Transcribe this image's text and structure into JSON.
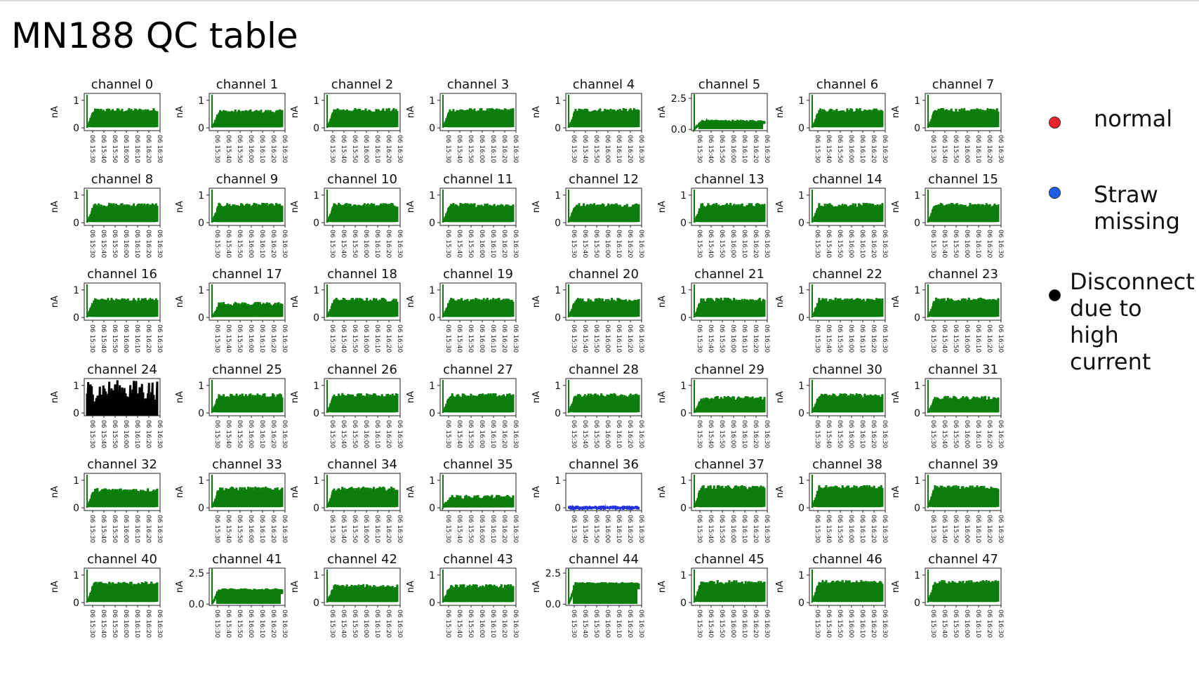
{
  "title": "MN188 QC table",
  "legend": [
    {
      "label": "normal",
      "color": "#e8232a"
    },
    {
      "label": "Straw\nmissing",
      "color": "#1f5fe8"
    },
    {
      "label": "Disconnect\ndue to high\ncurrent",
      "color": "#000000"
    }
  ],
  "chart_data": {
    "type": "line",
    "ylabel": "nA",
    "x_ticks": [
      "06 15:30",
      "06 15:40",
      "06 15:50",
      "06 16:00",
      "06 16:10",
      "06 16:20",
      "06 16:30"
    ],
    "status_colors": {
      "normal": "#0a7d0a",
      "straw_missing": "#2233dd",
      "disconnect": "#000000"
    },
    "panels": [
      {
        "title": "channel 0",
        "yticks": [
          "1",
          "0"
        ],
        "status": "normal",
        "level": 0.55
      },
      {
        "title": "channel 1",
        "yticks": [
          "1",
          "0"
        ],
        "status": "normal",
        "level": 0.5
      },
      {
        "title": "channel 2",
        "yticks": [
          "1",
          "0"
        ],
        "status": "normal",
        "level": 0.55
      },
      {
        "title": "channel 3",
        "yticks": [
          "1",
          "0"
        ],
        "status": "normal",
        "level": 0.55
      },
      {
        "title": "channel 4",
        "yticks": [
          "1",
          "0"
        ],
        "status": "normal",
        "level": 0.55
      },
      {
        "title": "channel 5",
        "yticks": [
          "2.5",
          "0.0"
        ],
        "status": "normal",
        "level": 0.6
      },
      {
        "title": "channel 6",
        "yticks": [
          "1",
          "0"
        ],
        "status": "normal",
        "level": 0.55
      },
      {
        "title": "channel 7",
        "yticks": [
          "1",
          "0"
        ],
        "status": "normal",
        "level": 0.55
      },
      {
        "title": "channel 8",
        "yticks": [
          "1",
          "0"
        ],
        "status": "normal",
        "level": 0.55
      },
      {
        "title": "channel 9",
        "yticks": [
          "1",
          "0"
        ],
        "status": "normal",
        "level": 0.55
      },
      {
        "title": "channel 10",
        "yticks": [
          "1",
          "0"
        ],
        "status": "normal",
        "level": 0.55
      },
      {
        "title": "channel 11",
        "yticks": [
          "1",
          "0"
        ],
        "status": "normal",
        "level": 0.55
      },
      {
        "title": "channel 12",
        "yticks": [
          "1",
          "0"
        ],
        "status": "normal",
        "level": 0.55
      },
      {
        "title": "channel 13",
        "yticks": [
          "1",
          "0"
        ],
        "status": "normal",
        "level": 0.55
      },
      {
        "title": "channel 14",
        "yticks": [
          "1",
          "0"
        ],
        "status": "normal",
        "level": 0.55
      },
      {
        "title": "channel 15",
        "yticks": [
          "1",
          "0"
        ],
        "status": "normal",
        "level": 0.55
      },
      {
        "title": "channel 16",
        "yticks": [
          "1",
          "0"
        ],
        "status": "normal",
        "level": 0.55
      },
      {
        "title": "channel 17",
        "yticks": [
          "1",
          "0"
        ],
        "status": "normal",
        "level": 0.4
      },
      {
        "title": "channel 18",
        "yticks": [
          "1",
          "0"
        ],
        "status": "normal",
        "level": 0.55
      },
      {
        "title": "channel 19",
        "yticks": [
          "1",
          "0"
        ],
        "status": "normal",
        "level": 0.55
      },
      {
        "title": "channel 20",
        "yticks": [
          "1",
          "0"
        ],
        "status": "normal",
        "level": 0.55
      },
      {
        "title": "channel 21",
        "yticks": [
          "1",
          "0"
        ],
        "status": "normal",
        "level": 0.55
      },
      {
        "title": "channel 22",
        "yticks": [
          "1",
          "0"
        ],
        "status": "normal",
        "level": 0.55
      },
      {
        "title": "channel 23",
        "yticks": [
          "1",
          "0"
        ],
        "status": "normal",
        "level": 0.55
      },
      {
        "title": "channel 24",
        "yticks": [
          "1",
          "0"
        ],
        "status": "disconnect",
        "level": 0.5
      },
      {
        "title": "channel 25",
        "yticks": [
          "1",
          "0"
        ],
        "status": "normal",
        "level": 0.55
      },
      {
        "title": "channel 26",
        "yticks": [
          "1",
          "0"
        ],
        "status": "normal",
        "level": 0.55
      },
      {
        "title": "channel 27",
        "yticks": [
          "1",
          "0"
        ],
        "status": "normal",
        "level": 0.55
      },
      {
        "title": "channel 28",
        "yticks": [
          "1",
          "0"
        ],
        "status": "normal",
        "level": 0.55
      },
      {
        "title": "channel 29",
        "yticks": [
          "1",
          "0"
        ],
        "status": "normal",
        "level": 0.45
      },
      {
        "title": "channel 30",
        "yticks": [
          "1",
          "0"
        ],
        "status": "normal",
        "level": 0.55
      },
      {
        "title": "channel 31",
        "yticks": [
          "1",
          "0"
        ],
        "status": "normal",
        "level": 0.45
      },
      {
        "title": "channel 32",
        "yticks": [
          "1",
          "0"
        ],
        "status": "normal",
        "level": 0.55
      },
      {
        "title": "channel 33",
        "yticks": [
          "1",
          "0"
        ],
        "status": "normal",
        "level": 0.6
      },
      {
        "title": "channel 34",
        "yticks": [
          "1",
          "0"
        ],
        "status": "normal",
        "level": 0.6
      },
      {
        "title": "channel 35",
        "yticks": [
          "1",
          "0"
        ],
        "status": "normal",
        "level": 0.3
      },
      {
        "title": "channel 36",
        "yticks": [
          "1",
          "0"
        ],
        "status": "straw_missing",
        "level": 0.0
      },
      {
        "title": "channel 37",
        "yticks": [
          "1",
          "0"
        ],
        "status": "normal",
        "level": 0.65
      },
      {
        "title": "channel 38",
        "yticks": [
          "1",
          "0"
        ],
        "status": "normal",
        "level": 0.65
      },
      {
        "title": "channel 39",
        "yticks": [
          "1",
          "0"
        ],
        "status": "normal",
        "level": 0.65
      },
      {
        "title": "channel 40",
        "yticks": [
          "1",
          "0"
        ],
        "status": "normal",
        "level": 0.6
      },
      {
        "title": "channel 41",
        "yticks": [
          "2.5",
          "0.0"
        ],
        "status": "normal",
        "level": 1.1
      },
      {
        "title": "channel 42",
        "yticks": [
          "1",
          "0"
        ],
        "status": "normal",
        "level": 0.5
      },
      {
        "title": "channel 43",
        "yticks": [
          "1",
          "0"
        ],
        "status": "normal",
        "level": 0.5
      },
      {
        "title": "channel 44",
        "yticks": [
          "2.5",
          "0.0"
        ],
        "status": "normal",
        "level": 1.6
      },
      {
        "title": "channel 45",
        "yticks": [
          "1",
          "0"
        ],
        "status": "normal",
        "level": 0.65
      },
      {
        "title": "channel 46",
        "yticks": [
          "1",
          "0"
        ],
        "status": "normal",
        "level": 0.65
      },
      {
        "title": "channel 47",
        "yticks": [
          "1",
          "0"
        ],
        "status": "normal",
        "level": 0.65
      }
    ]
  }
}
